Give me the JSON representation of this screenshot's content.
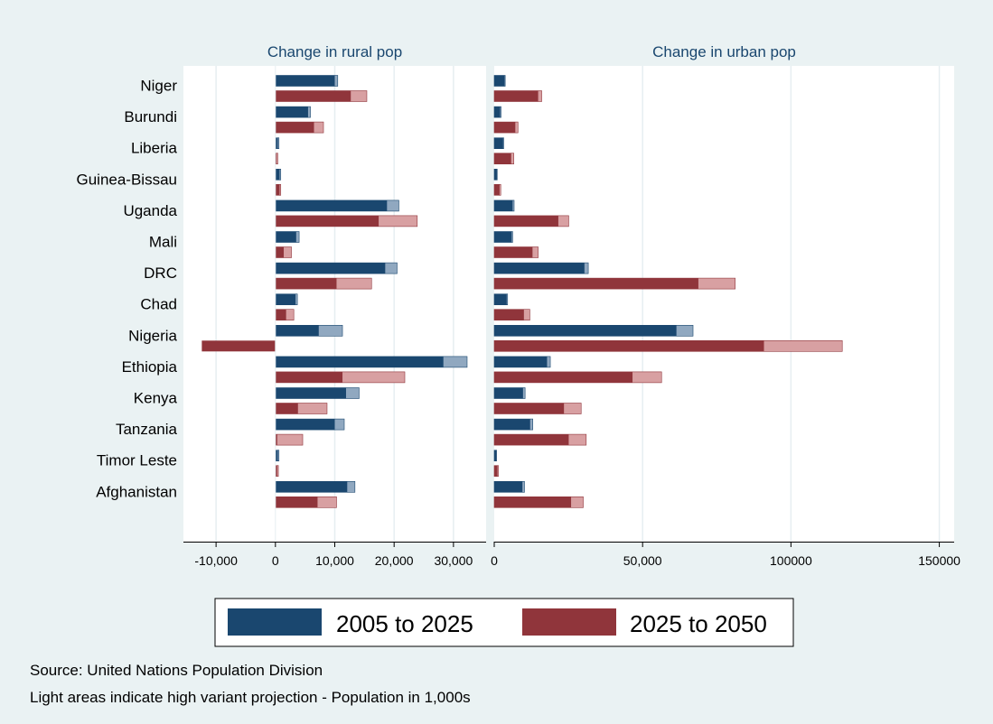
{
  "chart_data": {
    "type": "bar",
    "orientation": "horizontal",
    "categories": [
      "Niger",
      "Burundi",
      "Liberia",
      "Guinea-Bissau",
      "Uganda",
      "Mali",
      "DRC",
      "Chad",
      "Nigeria",
      "Ethiopia",
      "Kenya",
      "Tanzania",
      "Timor Leste",
      "Afghanistan"
    ],
    "legend": {
      "position": "bottom",
      "entries": [
        "2005 to 2025",
        "2025 to 2050"
      ]
    },
    "colors": {
      "series1_dark": "#1a476f",
      "series1_light": "#90a8c0",
      "series2_dark": "#90353b",
      "series2_light": "#d8a0a2"
    },
    "panels": [
      {
        "title": "Change in rural pop",
        "xlim": [
          -15500,
          35500
        ],
        "xticks": [
          -10000,
          0,
          10000,
          20000,
          30000
        ],
        "xtick_labels": [
          "-10,000",
          "0",
          "10,000",
          "20,000",
          "30,000"
        ],
        "grid": true,
        "series": [
          {
            "name": "2005 to 2025",
            "values": [
              10000,
              5500,
              400,
              700,
              18800,
              3500,
              18500,
              3400,
              7300,
              28300,
              11900,
              10000,
              400,
              12100
            ],
            "high_variant": [
              10500,
              5900,
              600,
              900,
              20800,
              4000,
              20500,
              3700,
              11300,
              32300,
              14100,
              11600,
              600,
              13400
            ]
          },
          {
            "name": "2025 to 2050",
            "values": [
              12700,
              6500,
              200,
              700,
              17400,
              1400,
              10300,
              1800,
              -12400,
              11300,
              3800,
              300,
              300,
              7100
            ],
            "high_variant": [
              15400,
              8100,
              400,
              900,
              23900,
              2700,
              16200,
              3100,
              -12400,
              21800,
              8700,
              4600,
              500,
              10300
            ]
          }
        ]
      },
      {
        "title": "Change in urban pop",
        "xlim": [
          0,
          155000
        ],
        "xticks": [
          0,
          50000,
          100000,
          150000
        ],
        "xtick_labels": [
          "0",
          "50,000",
          "100000",
          "150000"
        ],
        "grid": true,
        "series": [
          {
            "name": "2005 to 2025",
            "values": [
              3500,
              2000,
              3000,
              900,
              6200,
              5900,
              30400,
              4200,
              61400,
              17800,
              9700,
              12100,
              700,
              9500
            ],
            "high_variant": [
              3700,
              2300,
              3200,
              1000,
              6700,
              6200,
              31700,
              4500,
              67000,
              18900,
              10400,
              13000,
              800,
              10200
            ]
          },
          {
            "name": "2025 to 2050",
            "values": [
              14800,
              7100,
              5700,
              1800,
              21600,
              12900,
              68800,
              10000,
              90900,
              46600,
              23500,
              25100,
              1100,
              25900
            ],
            "high_variant": [
              16000,
              8000,
              6600,
              2200,
              25100,
              14800,
              81200,
              12000,
              117300,
              56400,
              29300,
              31000,
              1400,
              30000
            ]
          }
        ]
      }
    ]
  },
  "notes": {
    "source": "Source: United Nations Population Division",
    "caption": "Light areas indicate high variant projection - Population in 1,000s"
  }
}
